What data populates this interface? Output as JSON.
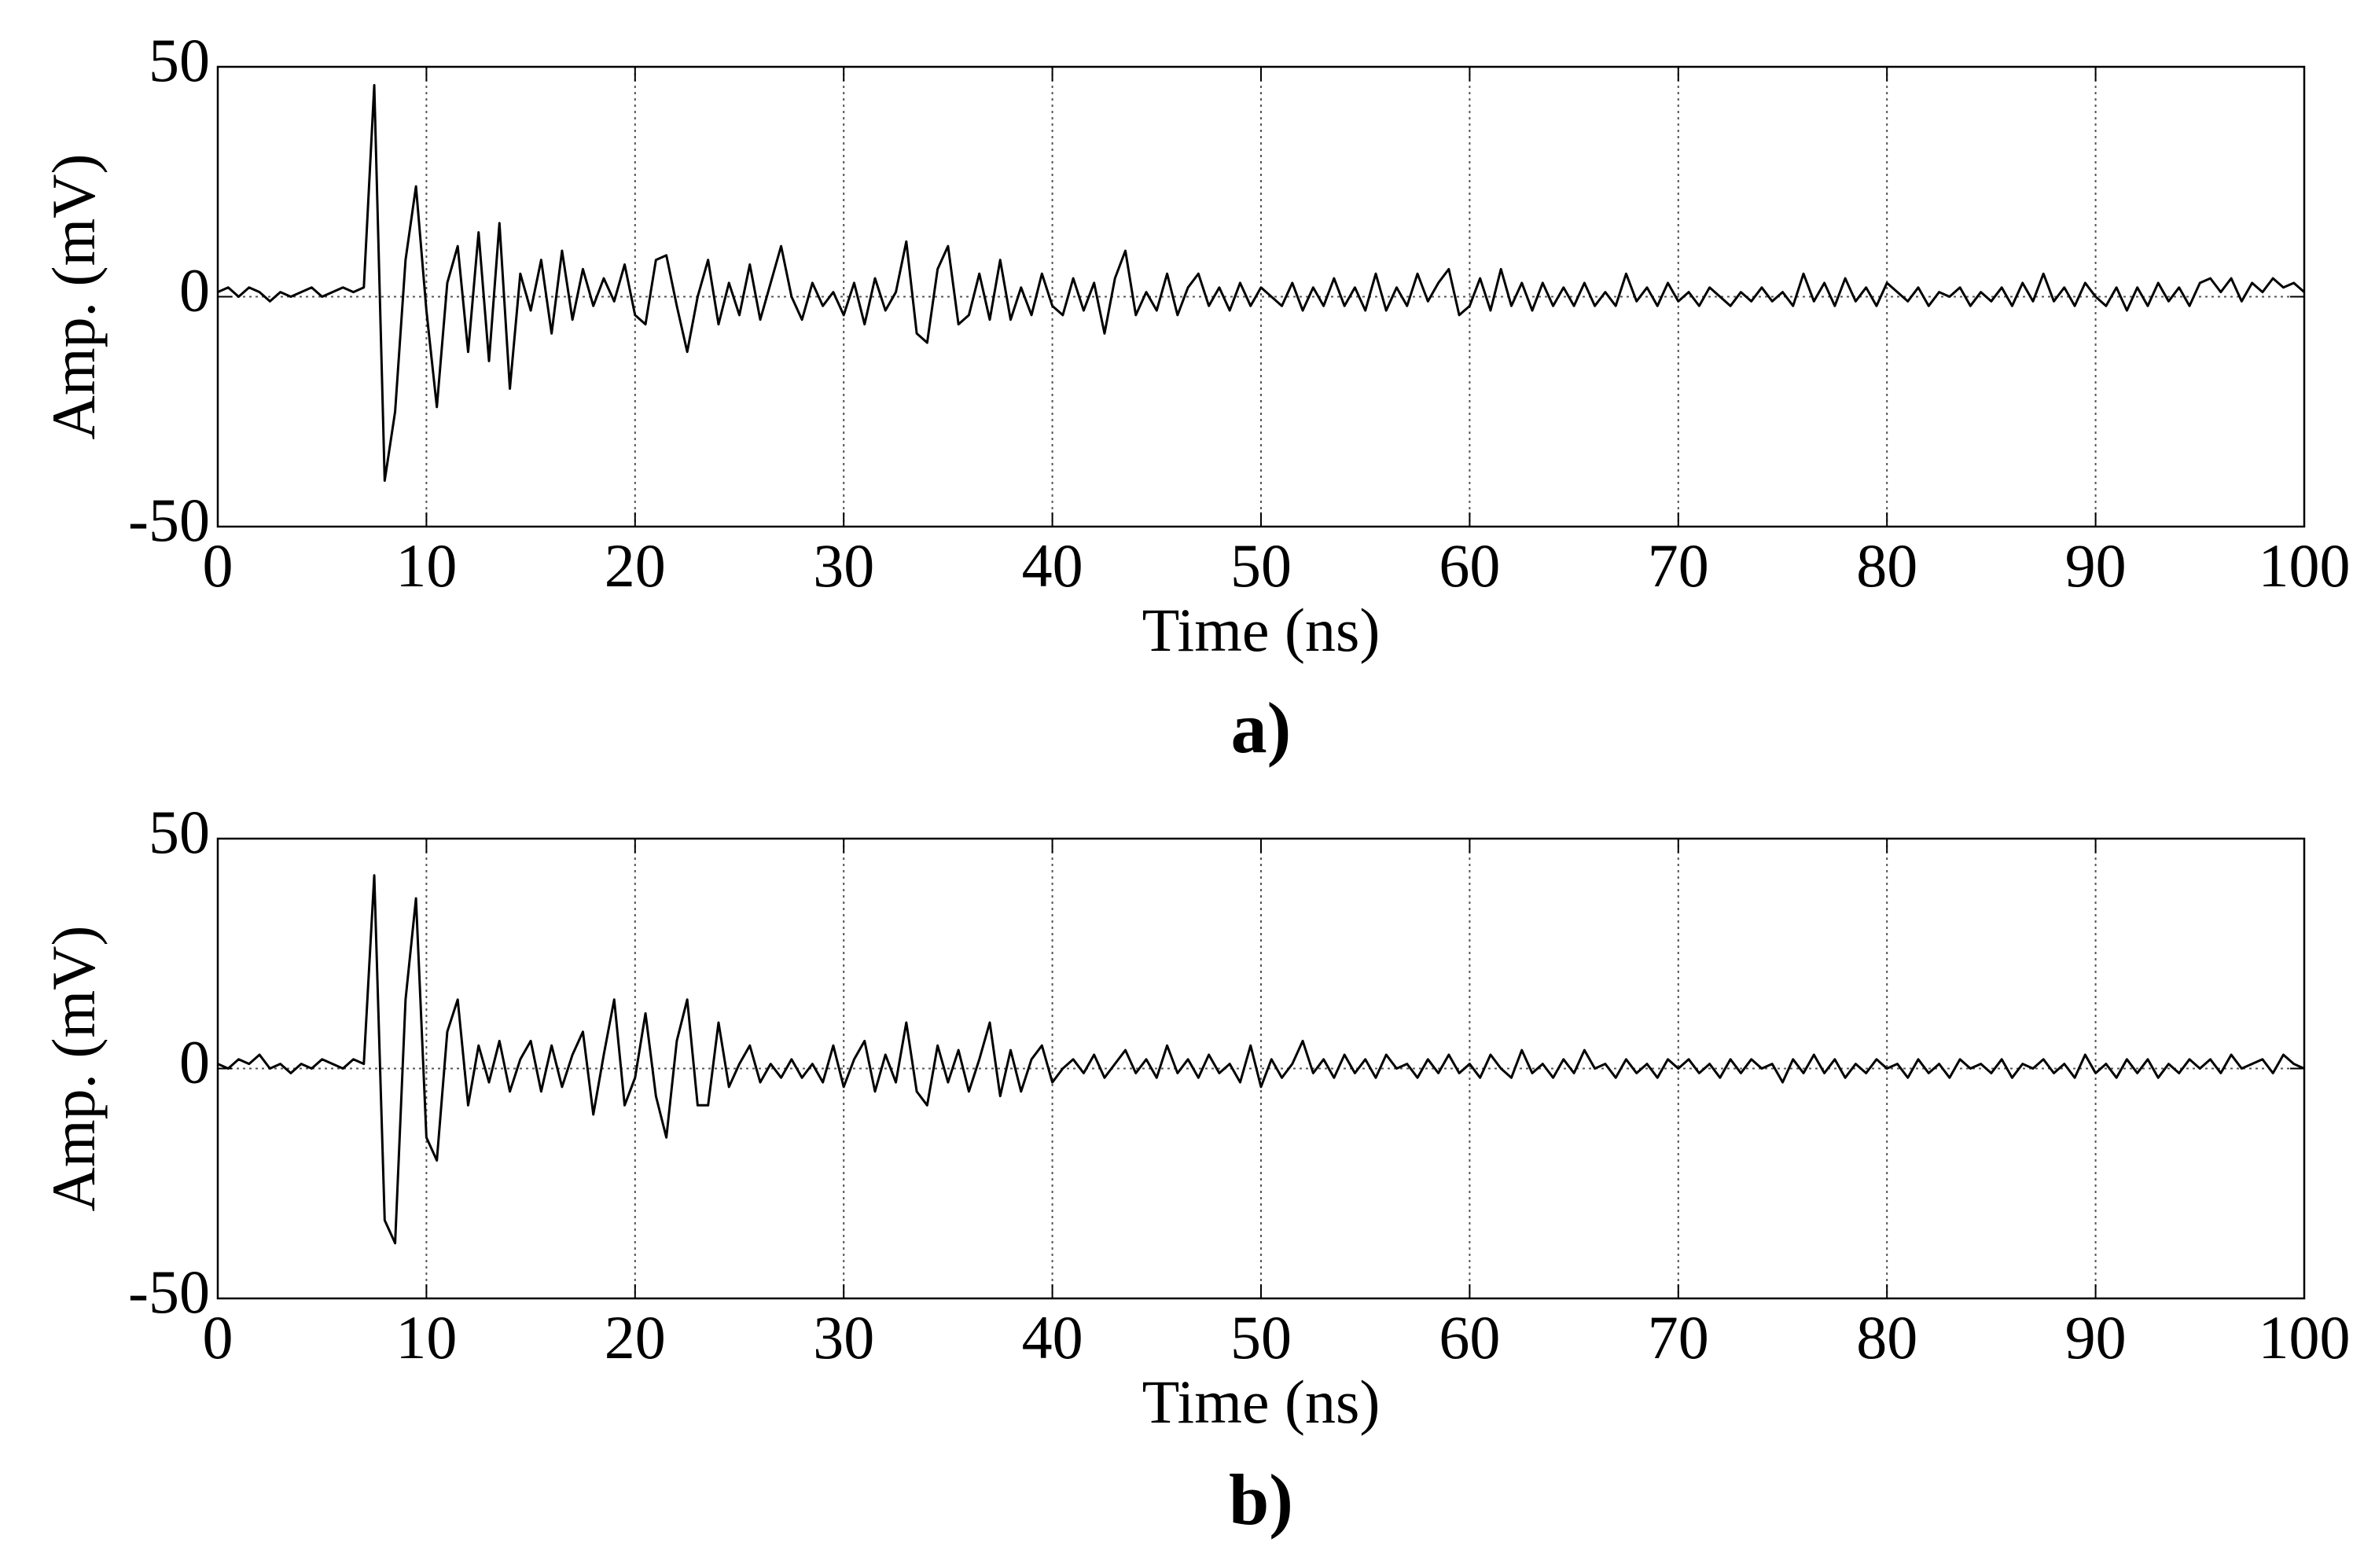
{
  "chart_data": [
    {
      "type": "line",
      "caption": "a)",
      "xlabel": "Time (ns)",
      "ylabel": "Amp. (mV)",
      "xlim": [
        0,
        100
      ],
      "ylim": [
        -50,
        50
      ],
      "xticks": [
        0,
        10,
        20,
        30,
        40,
        50,
        60,
        70,
        80,
        90,
        100
      ],
      "yticks": [
        -50,
        0,
        50
      ],
      "grid": true,
      "x": [
        0,
        0.5,
        1,
        1.5,
        2,
        2.5,
        3,
        3.5,
        4,
        4.5,
        5,
        5.5,
        6,
        6.5,
        7,
        7.5,
        8,
        8.5,
        9,
        9.5,
        10,
        10.5,
        11,
        11.5,
        12,
        12.5,
        13,
        13.5,
        14,
        14.5,
        15,
        15.5,
        16,
        16.5,
        17,
        17.5,
        18,
        18.5,
        19,
        19.5,
        20,
        20.5,
        21,
        21.5,
        22,
        22.5,
        23,
        23.5,
        24,
        24.5,
        25,
        25.5,
        26,
        26.5,
        27,
        27.5,
        28,
        28.5,
        29,
        29.5,
        30,
        30.5,
        31,
        31.5,
        32,
        32.5,
        33,
        33.5,
        34,
        34.5,
        35,
        35.5,
        36,
        36.5,
        37,
        37.5,
        38,
        38.5,
        39,
        39.5,
        40,
        40.5,
        41,
        41.5,
        42,
        42.5,
        43,
        43.5,
        44,
        44.5,
        45,
        45.5,
        46,
        46.5,
        47,
        47.5,
        48,
        48.5,
        49,
        49.5,
        50,
        50.5,
        51,
        51.5,
        52,
        52.5,
        53,
        53.5,
        54,
        54.5,
        55,
        55.5,
        56,
        56.5,
        57,
        57.5,
        58,
        58.5,
        59,
        59.5,
        60,
        60.5,
        61,
        61.5,
        62,
        62.5,
        63,
        63.5,
        64,
        64.5,
        65,
        65.5,
        66,
        66.5,
        67,
        67.5,
        68,
        68.5,
        69,
        69.5,
        70,
        70.5,
        71,
        71.5,
        72,
        72.5,
        73,
        73.5,
        74,
        74.5,
        75,
        75.5,
        76,
        76.5,
        77,
        77.5,
        78,
        78.5,
        79,
        79.5,
        80,
        80.5,
        81,
        81.5,
        82,
        82.5,
        83,
        83.5,
        84,
        84.5,
        85,
        85.5,
        86,
        86.5,
        87,
        87.5,
        88,
        88.5,
        89,
        89.5,
        90,
        90.5,
        91,
        91.5,
        92,
        92.5,
        93,
        93.5,
        94,
        94.5,
        95,
        95.5,
        96,
        96.5,
        97,
        97.5,
        98,
        98.5,
        99,
        99.5,
        100
      ],
      "series": [
        {
          "color": "#000000",
          "values": [
            1,
            2,
            0,
            2,
            1,
            -1,
            1,
            0,
            1,
            2,
            0,
            1,
            2,
            1,
            2,
            46,
            -40,
            -25,
            8,
            24,
            -3,
            -24,
            3,
            11,
            -12,
            14,
            -14,
            16,
            -20,
            5,
            -3,
            8,
            -8,
            10,
            -5,
            6,
            -2,
            4,
            -1,
            7,
            -4,
            -6,
            8,
            9,
            -2,
            -12,
            0,
            8,
            -6,
            3,
            -4,
            7,
            -5,
            3,
            11,
            0,
            -5,
            3,
            -2,
            1,
            -4,
            3,
            -6,
            4,
            -3,
            1,
            12,
            -8,
            -10,
            6,
            11,
            -6,
            -4,
            5,
            -5,
            8,
            -5,
            2,
            -4,
            5,
            -2,
            -4,
            4,
            -3,
            3,
            -8,
            4,
            10,
            -4,
            1,
            -3,
            5,
            -4,
            2,
            5,
            -2,
            2,
            -3,
            3,
            -2,
            2,
            0,
            -2,
            3,
            -3,
            2,
            -2,
            4,
            -2,
            2,
            -3,
            5,
            -3,
            2,
            -2,
            5,
            -1,
            3,
            6,
            -4,
            -2,
            4,
            -3,
            6,
            -2,
            3,
            -3,
            3,
            -2,
            2,
            -2,
            3,
            -2,
            1,
            -2,
            5,
            -1,
            2,
            -2,
            3,
            -1,
            1,
            -2,
            2,
            0,
            -2,
            1,
            -1,
            2,
            -1,
            1,
            -2,
            5,
            -1,
            3,
            -2,
            4,
            -1,
            2,
            -2,
            3,
            1,
            -1,
            2,
            -2,
            1,
            0,
            2,
            -2,
            1,
            -1,
            2,
            -2,
            3,
            -1,
            5,
            -1,
            2,
            -2,
            3,
            0,
            -2,
            2,
            -3,
            2,
            -2,
            3,
            -1,
            2,
            -2,
            3,
            4,
            1,
            4,
            -1,
            3,
            1,
            4,
            2,
            3,
            1
          ]
        }
      ]
    },
    {
      "type": "line",
      "caption": "b)",
      "xlabel": "Time (ns)",
      "ylabel": "Amp. (mV)",
      "xlim": [
        0,
        100
      ],
      "ylim": [
        -50,
        50
      ],
      "xticks": [
        0,
        10,
        20,
        30,
        40,
        50,
        60,
        70,
        80,
        90,
        100
      ],
      "yticks": [
        -50,
        0,
        50
      ],
      "grid": true,
      "x": [
        0,
        0.5,
        1,
        1.5,
        2,
        2.5,
        3,
        3.5,
        4,
        4.5,
        5,
        5.5,
        6,
        6.5,
        7,
        7.5,
        8,
        8.5,
        9,
        9.5,
        10,
        10.5,
        11,
        11.5,
        12,
        12.5,
        13,
        13.5,
        14,
        14.5,
        15,
        15.5,
        16,
        16.5,
        17,
        17.5,
        18,
        18.5,
        19,
        19.5,
        20,
        20.5,
        21,
        21.5,
        22,
        22.5,
        23,
        23.5,
        24,
        24.5,
        25,
        25.5,
        26,
        26.5,
        27,
        27.5,
        28,
        28.5,
        29,
        29.5,
        30,
        30.5,
        31,
        31.5,
        32,
        32.5,
        33,
        33.5,
        34,
        34.5,
        35,
        35.5,
        36,
        36.5,
        37,
        37.5,
        38,
        38.5,
        39,
        39.5,
        40,
        40.5,
        41,
        41.5,
        42,
        42.5,
        43,
        43.5,
        44,
        44.5,
        45,
        45.5,
        46,
        46.5,
        47,
        47.5,
        48,
        48.5,
        49,
        49.5,
        50,
        50.5,
        51,
        51.5,
        52,
        52.5,
        53,
        53.5,
        54,
        54.5,
        55,
        55.5,
        56,
        56.5,
        57,
        57.5,
        58,
        58.5,
        59,
        59.5,
        60,
        60.5,
        61,
        61.5,
        62,
        62.5,
        63,
        63.5,
        64,
        64.5,
        65,
        65.5,
        66,
        66.5,
        67,
        67.5,
        68,
        68.5,
        69,
        69.5,
        70,
        70.5,
        71,
        71.5,
        72,
        72.5,
        73,
        73.5,
        74,
        74.5,
        75,
        75.5,
        76,
        76.5,
        77,
        77.5,
        78,
        78.5,
        79,
        79.5,
        80,
        80.5,
        81,
        81.5,
        82,
        82.5,
        83,
        83.5,
        84,
        84.5,
        85,
        85.5,
        86,
        86.5,
        87,
        87.5,
        88,
        88.5,
        89,
        89.5,
        90,
        90.5,
        91,
        91.5,
        92,
        92.5,
        93,
        93.5,
        94,
        94.5,
        95,
        95.5,
        96,
        96.5,
        97,
        97.5,
        98,
        98.5,
        99,
        99.5,
        100
      ],
      "series": [
        {
          "color": "#000000",
          "values": [
            1,
            0,
            2,
            1,
            3,
            0,
            1,
            -1,
            1,
            0,
            2,
            1,
            0,
            2,
            1,
            42,
            -33,
            -38,
            15,
            37,
            -15,
            -20,
            8,
            15,
            -8,
            5,
            -3,
            6,
            -5,
            2,
            6,
            -5,
            5,
            -4,
            3,
            8,
            -10,
            3,
            15,
            -8,
            -2,
            12,
            -6,
            -15,
            6,
            15,
            -8,
            -8,
            10,
            -4,
            1,
            5,
            -3,
            1,
            -2,
            2,
            -2,
            1,
            -3,
            5,
            -4,
            2,
            6,
            -5,
            3,
            -3,
            10,
            -5,
            -8,
            5,
            -3,
            4,
            -5,
            2,
            10,
            -6,
            4,
            -5,
            2,
            5,
            -3,
            0,
            2,
            -1,
            3,
            -2,
            1,
            4,
            -1,
            2,
            -2,
            5,
            -1,
            2,
            -2,
            3,
            -1,
            1,
            -3,
            5,
            -4,
            2,
            -2,
            1,
            6,
            -1,
            2,
            -2,
            3,
            -1,
            2,
            -2,
            3,
            0,
            1,
            -2,
            2,
            -1,
            3,
            -1,
            1,
            -2,
            3,
            0,
            -2,
            4,
            -1,
            1,
            -2,
            2,
            -1,
            4,
            0,
            1,
            -2,
            2,
            -1,
            1,
            -2,
            2,
            0,
            2,
            -1,
            1,
            -2,
            2,
            -1,
            2,
            0,
            1,
            -3,
            2,
            -1,
            3,
            -1,
            2,
            -2,
            1,
            -1,
            2,
            0,
            1,
            -2,
            2,
            -1,
            1,
            -2,
            2,
            0,
            1,
            -1,
            2,
            -2,
            1,
            0,
            2,
            -1,
            1,
            -2,
            3,
            -1,
            1,
            -2,
            2,
            -1,
            2,
            -2,
            1,
            -1,
            2,
            0,
            2,
            -1,
            3,
            0,
            1,
            2,
            -1,
            3,
            1,
            0
          ]
        }
      ]
    }
  ]
}
